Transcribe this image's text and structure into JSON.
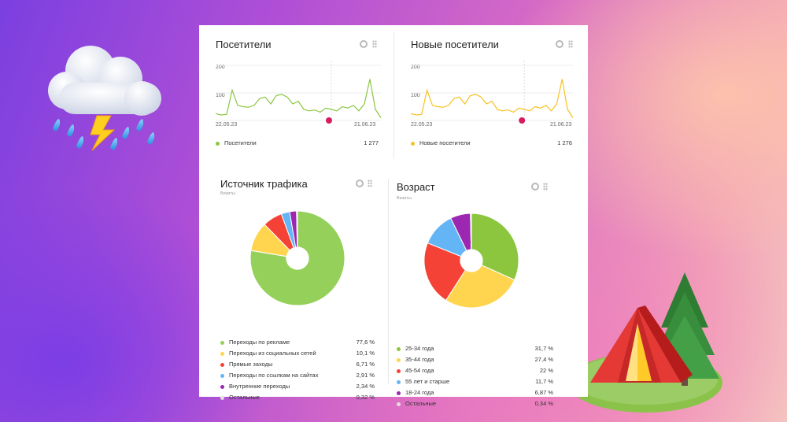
{
  "widgets": {
    "visitors": {
      "title": "Посетители",
      "y_ticks": [
        "200",
        "100"
      ],
      "date_start": "22.05.23",
      "date_end": "21.06.23",
      "legend_label": "Посетители",
      "legend_value": "1 277",
      "color": "#8cc63f"
    },
    "new_visitors": {
      "title": "Новые посетители",
      "y_ticks": [
        "200",
        "100"
      ],
      "date_start": "22.05.23",
      "date_end": "21.06.23",
      "legend_label": "Новые посетители",
      "legend_value": "1 276",
      "color": "#f7c11f"
    },
    "traffic": {
      "title": "Источник трафика",
      "subtitle": "Визиты",
      "items": [
        {
          "label": "Переходы по рекламе",
          "value": "77,6 %",
          "color": "#95d05b"
        },
        {
          "label": "Переходы из социальных сетей",
          "value": "10,1 %",
          "color": "#ffd54f"
        },
        {
          "label": "Прямые заходы",
          "value": "6,71 %",
          "color": "#f44336"
        },
        {
          "label": "Переходы по ссылкам на сайтах",
          "value": "2,91 %",
          "color": "#64b5f6"
        },
        {
          "label": "Внутренние переходы",
          "value": "2,34 %",
          "color": "#9c27b0"
        },
        {
          "label": "Остальные",
          "value": "0,32 %",
          "color": "#e0e0e0"
        }
      ]
    },
    "age": {
      "title": "Возраст",
      "subtitle": "Визиты",
      "items": [
        {
          "label": "25-34 года",
          "value": "31,7 %",
          "color": "#8cc63f"
        },
        {
          "label": "35-44 года",
          "value": "27,4 %",
          "color": "#ffd54f"
        },
        {
          "label": "45-54 года",
          "value": "22 %",
          "color": "#f44336"
        },
        {
          "label": "55 лет и старше",
          "value": "11,7 %",
          "color": "#64b5f6"
        },
        {
          "label": "18-24 года",
          "value": "6,87 %",
          "color": "#9c27b0"
        },
        {
          "label": "Остальные",
          "value": "0,34 %",
          "color": "#e0e0e0"
        }
      ]
    }
  },
  "chart_data": [
    {
      "type": "line",
      "series": [
        {
          "name": "Посетители",
          "values": [
            25,
            20,
            22,
            110,
            55,
            50,
            48,
            55,
            80,
            85,
            60,
            90,
            95,
            85,
            60,
            70,
            40,
            35,
            38,
            30,
            45,
            40,
            35,
            50,
            45,
            55,
            35,
            60,
            150,
            40,
            10
          ]
        }
      ],
      "ylim": [
        0,
        200
      ]
    },
    {
      "type": "line",
      "series": [
        {
          "name": "Новые посетители",
          "values": [
            25,
            20,
            22,
            110,
            55,
            50,
            48,
            55,
            80,
            85,
            60,
            90,
            95,
            85,
            60,
            70,
            40,
            35,
            38,
            30,
            45,
            40,
            35,
            50,
            45,
            55,
            35,
            60,
            150,
            40,
            10
          ]
        }
      ],
      "ylim": [
        0,
        200
      ]
    },
    {
      "type": "pie",
      "categories": [
        "Переходы по рекламе",
        "Переходы из социальных сетей",
        "Прямые заходы",
        "Переходы по ссылкам на сайтах",
        "Внутренние переходы",
        "Остальные"
      ],
      "values": [
        77.6,
        10.1,
        6.71,
        2.91,
        2.34,
        0.32
      ]
    },
    {
      "type": "pie",
      "categories": [
        "25-34 года",
        "35-44 года",
        "45-54 года",
        "55 лет и старше",
        "18-24 года",
        "Остальные"
      ],
      "values": [
        31.7,
        27.4,
        22,
        11.7,
        6.87,
        0.34
      ]
    }
  ],
  "icons": {
    "cloud": "storm-cloud-icon",
    "tent": "camping-tent-icon"
  }
}
